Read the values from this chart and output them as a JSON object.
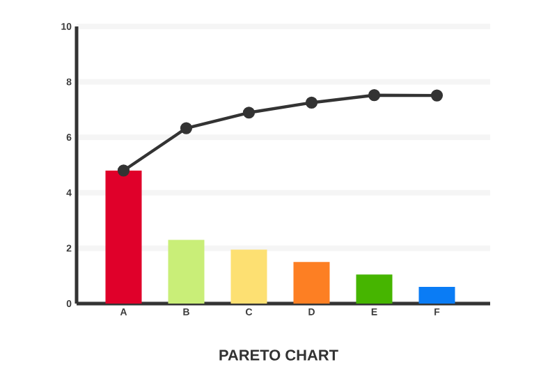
{
  "chart_data": {
    "type": "bar",
    "title": "PARETO CHART",
    "categories": [
      "A",
      "B",
      "C",
      "D",
      "E",
      "F"
    ],
    "values": [
      4.8,
      2.3,
      1.95,
      1.5,
      1.05,
      0.6
    ],
    "colors": [
      "#e0002a",
      "#c9ee78",
      "#fde072",
      "#fd7f23",
      "#46b500",
      "#0a7cf5"
    ],
    "series": [
      {
        "type": "line",
        "color": "#333333",
        "values": [
          4.8,
          6.33,
          6.89,
          7.25,
          7.52,
          7.51
        ]
      }
    ],
    "ylim": [
      0,
      10
    ],
    "yticks": [
      0,
      2,
      4,
      6,
      8,
      10
    ],
    "grid": "y",
    "marker": "circle",
    "line_style": "solid"
  }
}
